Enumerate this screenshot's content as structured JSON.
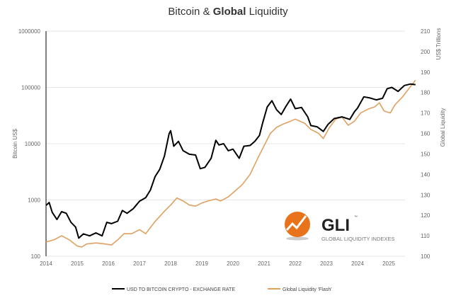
{
  "chart_data": {
    "type": "line",
    "title_parts": [
      "Bitcoin & ",
      "Global",
      " Liquidity"
    ],
    "y_left_label": "Bitcoin US$",
    "y_right_label_top": "US$ Trillions",
    "y_right_label": "Global Liquidity",
    "y_left_scale": "log",
    "y_left_lim": [
      100,
      1000000
    ],
    "y_left_ticks": [
      "100",
      "1000",
      "10000",
      "100000",
      "1000000"
    ],
    "y_right_lim": [
      100,
      210
    ],
    "y_right_ticks": [
      "100",
      "110",
      "120",
      "130",
      "140",
      "150",
      "160",
      "170",
      "180",
      "190",
      "200",
      "210"
    ],
    "x_ticks": [
      "2014",
      "2015",
      "2016",
      "2017",
      "2018",
      "2019",
      "2020",
      "2021",
      "2022",
      "2023",
      "2024",
      "2025"
    ],
    "grid": "horizontal",
    "legend_position": "bottom",
    "series": [
      {
        "name": "USD TO BITCOIN CRYPTO - EXCHANGE RATE",
        "axis": "left",
        "color": "#000000",
        "points": [
          [
            2014.0,
            800
          ],
          [
            2014.1,
            900
          ],
          [
            2014.2,
            600
          ],
          [
            2014.35,
            450
          ],
          [
            2014.5,
            620
          ],
          [
            2014.65,
            580
          ],
          [
            2014.8,
            400
          ],
          [
            2014.95,
            330
          ],
          [
            2015.05,
            210
          ],
          [
            2015.2,
            250
          ],
          [
            2015.4,
            230
          ],
          [
            2015.6,
            260
          ],
          [
            2015.8,
            230
          ],
          [
            2015.95,
            400
          ],
          [
            2016.1,
            380
          ],
          [
            2016.3,
            420
          ],
          [
            2016.45,
            650
          ],
          [
            2016.6,
            580
          ],
          [
            2016.8,
            700
          ],
          [
            2017.0,
            950
          ],
          [
            2017.2,
            1100
          ],
          [
            2017.35,
            1500
          ],
          [
            2017.5,
            2600
          ],
          [
            2017.65,
            3500
          ],
          [
            2017.8,
            6000
          ],
          [
            2017.95,
            15000
          ],
          [
            2018.0,
            17000
          ],
          [
            2018.1,
            9000
          ],
          [
            2018.25,
            11000
          ],
          [
            2018.4,
            7500
          ],
          [
            2018.6,
            6500
          ],
          [
            2018.8,
            6300
          ],
          [
            2018.95,
            3600
          ],
          [
            2019.1,
            3800
          ],
          [
            2019.3,
            5500
          ],
          [
            2019.45,
            11500
          ],
          [
            2019.55,
            9500
          ],
          [
            2019.7,
            10000
          ],
          [
            2019.85,
            7500
          ],
          [
            2020.0,
            8000
          ],
          [
            2020.2,
            5500
          ],
          [
            2020.35,
            9000
          ],
          [
            2020.55,
            9300
          ],
          [
            2020.7,
            11000
          ],
          [
            2020.85,
            14000
          ],
          [
            2020.95,
            23000
          ],
          [
            2021.1,
            45000
          ],
          [
            2021.25,
            58000
          ],
          [
            2021.4,
            40000
          ],
          [
            2021.55,
            33000
          ],
          [
            2021.7,
            46000
          ],
          [
            2021.85,
            62000
          ],
          [
            2022.0,
            42000
          ],
          [
            2022.2,
            44000
          ],
          [
            2022.4,
            30000
          ],
          [
            2022.5,
            21000
          ],
          [
            2022.7,
            20000
          ],
          [
            2022.9,
            16500
          ],
          [
            2023.05,
            22000
          ],
          [
            2023.25,
            28000
          ],
          [
            2023.5,
            30000
          ],
          [
            2023.75,
            27000
          ],
          [
            2023.9,
            37000
          ],
          [
            2024.0,
            43000
          ],
          [
            2024.2,
            68000
          ],
          [
            2024.4,
            65000
          ],
          [
            2024.6,
            60000
          ],
          [
            2024.8,
            64000
          ],
          [
            2024.95,
            95000
          ],
          [
            2025.1,
            100000
          ],
          [
            2025.3,
            85000
          ],
          [
            2025.5,
            108000
          ],
          [
            2025.7,
            115000
          ],
          [
            2025.86,
            112000
          ]
        ]
      },
      {
        "name": "Global Liquidity 'Flash'",
        "axis": "right",
        "color": "#E0A060",
        "points": [
          [
            2014.0,
            107
          ],
          [
            2014.25,
            108
          ],
          [
            2014.5,
            110
          ],
          [
            2014.75,
            108
          ],
          [
            2015.0,
            105
          ],
          [
            2015.15,
            104.5
          ],
          [
            2015.3,
            106
          ],
          [
            2015.6,
            106.5
          ],
          [
            2015.9,
            106
          ],
          [
            2016.1,
            105.5
          ],
          [
            2016.3,
            108
          ],
          [
            2016.5,
            111
          ],
          [
            2016.75,
            111
          ],
          [
            2017.0,
            113
          ],
          [
            2017.2,
            111
          ],
          [
            2017.5,
            117
          ],
          [
            2017.8,
            122
          ],
          [
            2018.0,
            125
          ],
          [
            2018.2,
            128.5
          ],
          [
            2018.4,
            127
          ],
          [
            2018.6,
            125
          ],
          [
            2018.8,
            124.5
          ],
          [
            2019.0,
            126
          ],
          [
            2019.2,
            127
          ],
          [
            2019.45,
            128
          ],
          [
            2019.6,
            127
          ],
          [
            2019.85,
            129
          ],
          [
            2020.0,
            131
          ],
          [
            2020.3,
            135
          ],
          [
            2020.55,
            140
          ],
          [
            2020.8,
            148
          ],
          [
            2021.0,
            154
          ],
          [
            2021.2,
            160
          ],
          [
            2021.4,
            163
          ],
          [
            2021.6,
            164.5
          ],
          [
            2021.85,
            166
          ],
          [
            2022.0,
            167
          ],
          [
            2022.3,
            165
          ],
          [
            2022.5,
            162
          ],
          [
            2022.75,
            160
          ],
          [
            2022.9,
            157.5
          ],
          [
            2023.1,
            163
          ],
          [
            2023.3,
            167
          ],
          [
            2023.5,
            168
          ],
          [
            2023.7,
            164
          ],
          [
            2023.9,
            166
          ],
          [
            2024.1,
            170
          ],
          [
            2024.35,
            172
          ],
          [
            2024.55,
            173
          ],
          [
            2024.7,
            175
          ],
          [
            2024.85,
            171
          ],
          [
            2025.05,
            170
          ],
          [
            2025.2,
            174
          ],
          [
            2025.45,
            178
          ],
          [
            2025.7,
            183
          ],
          [
            2025.86,
            186
          ]
        ]
      }
    ]
  },
  "logo": {
    "mark": "GLI",
    "tm": "™",
    "subtitle": "GLOBAL LIQUIDITY INDEXES",
    "color": "#E8731A"
  }
}
